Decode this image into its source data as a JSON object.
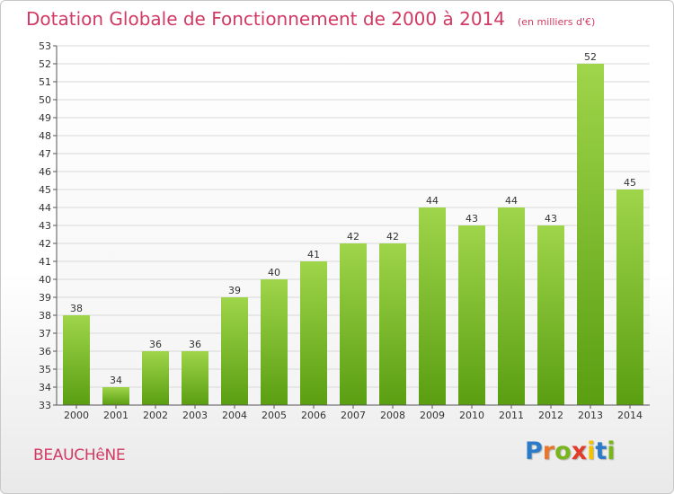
{
  "header": {
    "title": "Dotation Globale de Fonctionnement de 2000 à 2014",
    "subtitle": "(en milliers d'€)"
  },
  "footer": {
    "place_name": "BEAUCHêNE",
    "logo": {
      "text": "Proxiti",
      "letters": [
        "P",
        "r",
        "o",
        "x",
        "i",
        "t",
        "i"
      ],
      "letter_colors": [
        "#2b7bc9",
        "#e8762b",
        "#7ab51d",
        "#e23a2b",
        "#f2c200",
        "#2b7bc9",
        "#7ab51d"
      ]
    }
  },
  "colors": {
    "title": "#d23a63",
    "bar_top": "#9fd54a",
    "bar_bottom": "#5a9e12",
    "grid": "#d9d9d9",
    "axis": "#555555"
  },
  "chart_data": {
    "type": "bar",
    "title": "Dotation Globale de Fonctionnement de 2000 à 2014",
    "subtitle": "(en milliers d'€)",
    "xlabel": "",
    "ylabel": "",
    "categories": [
      "2000",
      "2001",
      "2002",
      "2003",
      "2004",
      "2005",
      "2006",
      "2007",
      "2008",
      "2009",
      "2010",
      "2011",
      "2012",
      "2013",
      "2014"
    ],
    "values": [
      38,
      34,
      36,
      36,
      39,
      40,
      41,
      42,
      42,
      44,
      43,
      44,
      43,
      52,
      45
    ],
    "data_labels": [
      "38",
      "34",
      "36",
      "36",
      "39",
      "40",
      "41",
      "42",
      "42",
      "44",
      "43",
      "44",
      "43",
      "52",
      "45"
    ],
    "ylim": [
      33,
      53
    ],
    "yticks": [
      33,
      34,
      35,
      36,
      37,
      38,
      39,
      40,
      41,
      42,
      43,
      44,
      45,
      46,
      47,
      48,
      49,
      50,
      51,
      52,
      53
    ],
    "grid": "horizontal",
    "legend": "none"
  }
}
